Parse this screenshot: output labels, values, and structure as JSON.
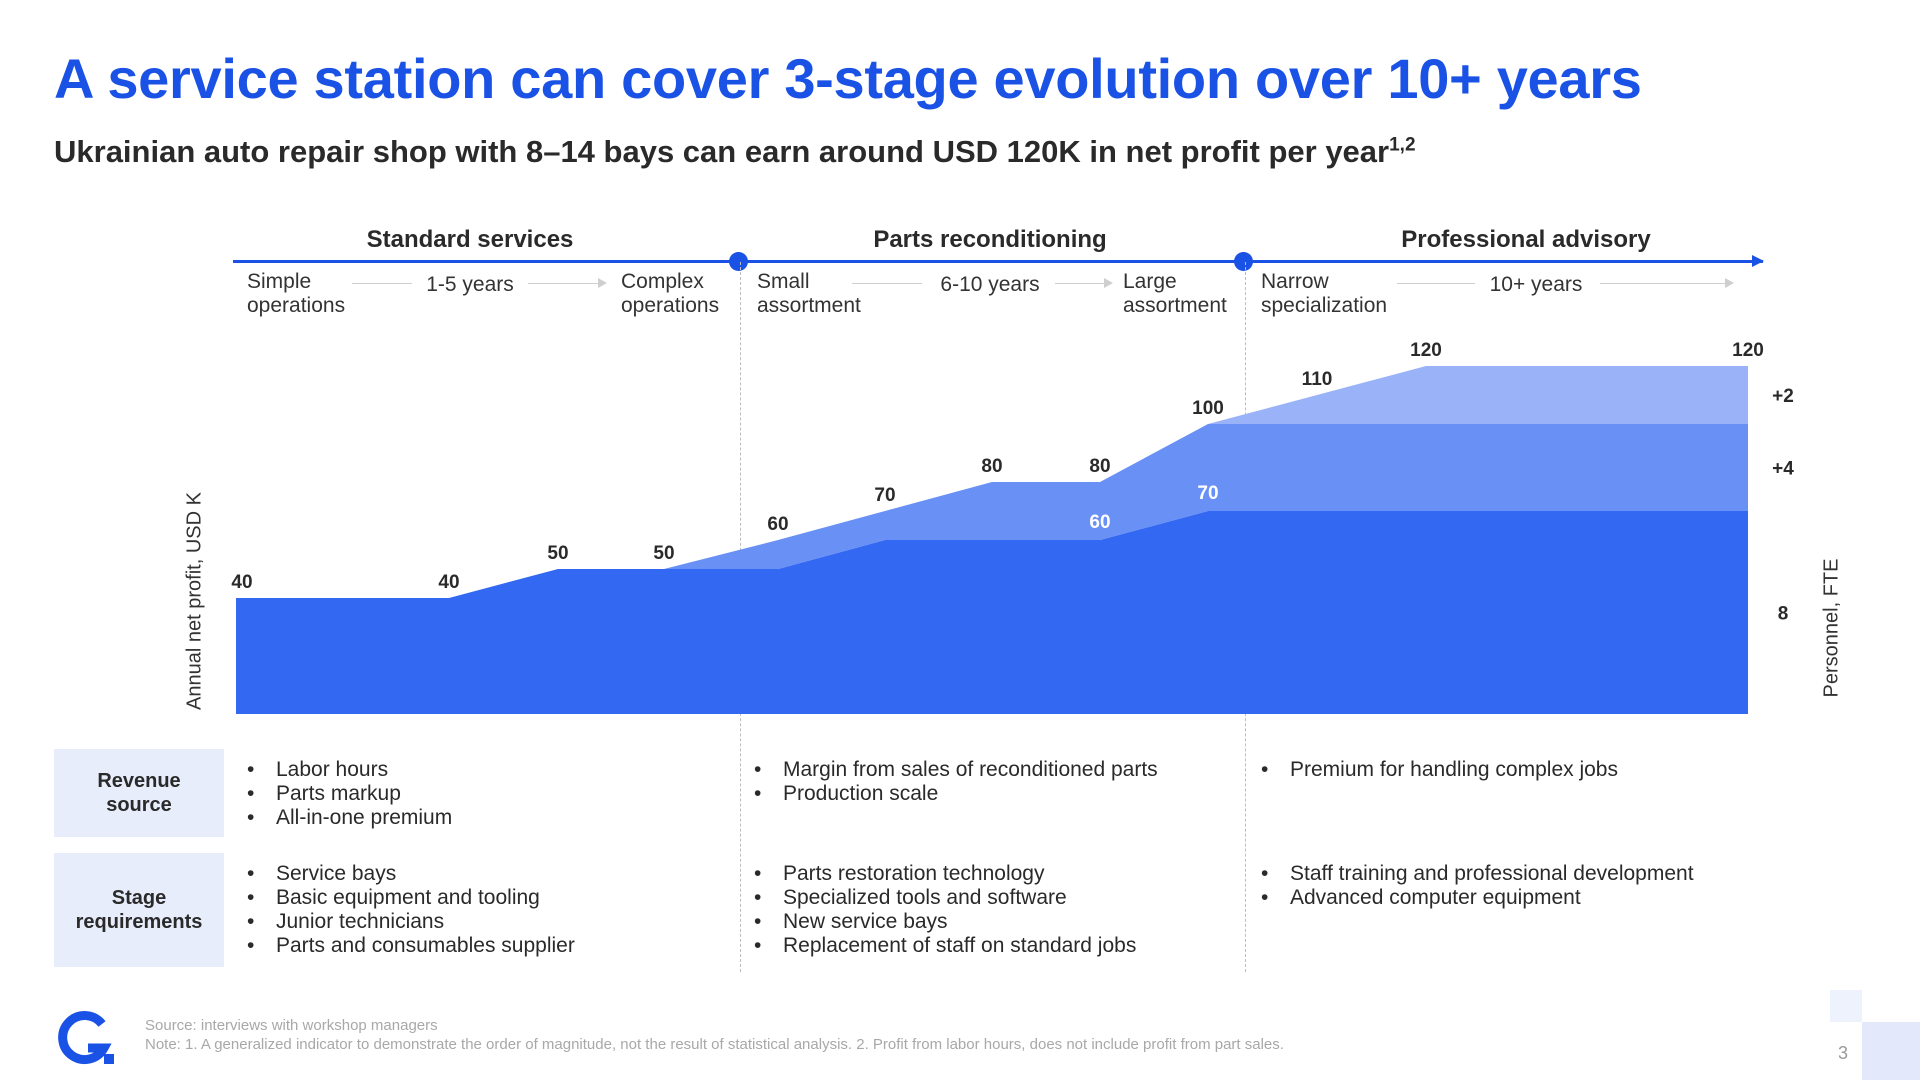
{
  "header": {
    "title": "A service station can cover 3-stage evolution over 10+ years",
    "subtitle": "Ukrainian auto repair shop with 8–14 bays can earn around USD 120K in net profit per year",
    "subtitle_sup": "1,2"
  },
  "stages": [
    {
      "title": "Standard services",
      "from": "Simple\noperations",
      "years": "1-5 years",
      "to": "Complex\noperations"
    },
    {
      "title": "Parts reconditioning",
      "from": "Small\nassortment",
      "years": "6-10 years",
      "to": "Large\nassortment"
    },
    {
      "title": "Professional advisory",
      "from": "Narrow\nspecialization",
      "years": "10+ years",
      "to": ""
    }
  ],
  "chart_data": {
    "type": "area",
    "ylabel": "Annual net profit, USD K",
    "y2label": "Personnel, FTE",
    "ylim": [
      0,
      120
    ],
    "x": [
      1,
      2,
      3,
      4,
      5,
      6,
      7,
      8,
      9,
      10,
      11,
      12
    ],
    "series": [
      {
        "values": [
          40,
          40,
          50,
          50,
          50,
          60,
          60,
          60,
          70,
          70,
          70,
          70
        ],
        "color": "#3369f2"
      },
      {
        "values": [
          0,
          0,
          0,
          0,
          10,
          10,
          20,
          20,
          30,
          30,
          30,
          30
        ],
        "color": "#6890f5"
      },
      {
        "values": [
          0,
          0,
          0,
          0,
          0,
          0,
          0,
          0,
          0,
          10,
          20,
          20
        ],
        "color": "#9ab3f8"
      }
    ],
    "point_labels": [
      {
        "x": 1,
        "y": 40,
        "text": "40"
      },
      {
        "x": 2,
        "y": 40,
        "text": "40"
      },
      {
        "x": 3,
        "y": 50,
        "text": "50"
      },
      {
        "x": 4,
        "y": 50,
        "text": "50"
      },
      {
        "x": 5,
        "y": 60,
        "text": "60"
      },
      {
        "x": 6,
        "y": 70,
        "text": "70"
      },
      {
        "x": 7,
        "y": 80,
        "text": "80"
      },
      {
        "x": 8,
        "y": 80,
        "text": "80"
      },
      {
        "x": 8,
        "y": 60,
        "text": "60"
      },
      {
        "x": 9,
        "y": 100,
        "text": "100"
      },
      {
        "x": 9,
        "y": 70,
        "text": "70"
      },
      {
        "x": 10,
        "y": 110,
        "text": "110"
      },
      {
        "x": 11,
        "y": 120,
        "text": "120"
      },
      {
        "x": 12,
        "y": 120,
        "text": "120"
      }
    ],
    "personnel_labels": [
      "8",
      "+4",
      "+2"
    ],
    "legend": "none"
  },
  "rows": {
    "revenue_label": "Revenue\nsource",
    "requirements_label": "Stage\nrequirements",
    "revenue": [
      [
        "Labor hours",
        "Parts markup",
        "All-in-one premium"
      ],
      [
        "Margin from sales of reconditioned parts",
        "Production scale"
      ],
      [
        "Premium for handling complex jobs"
      ]
    ],
    "requirements": [
      [
        "Service bays",
        "Basic equipment and tooling",
        "Junior technicians",
        "Parts and consumables supplier"
      ],
      [
        "Parts restoration technology",
        "Specialized tools and software",
        "New service bays",
        "Replacement of staff on standard jobs"
      ],
      [
        "Staff training and professional development",
        "Advanced computer equipment"
      ]
    ]
  },
  "footer": {
    "source": "Source: interviews with workshop managers",
    "note": "Note: 1. A generalized indicator to demonstrate the order of magnitude, not the result of statistical analysis. 2. Profit from labor hours, does not include profit from part sales.",
    "page": "3"
  },
  "colors": {
    "accent": "#1b52e6",
    "label_bg": "#e8edfb"
  },
  "icons": {
    "logo": "brand-logo-icon"
  }
}
